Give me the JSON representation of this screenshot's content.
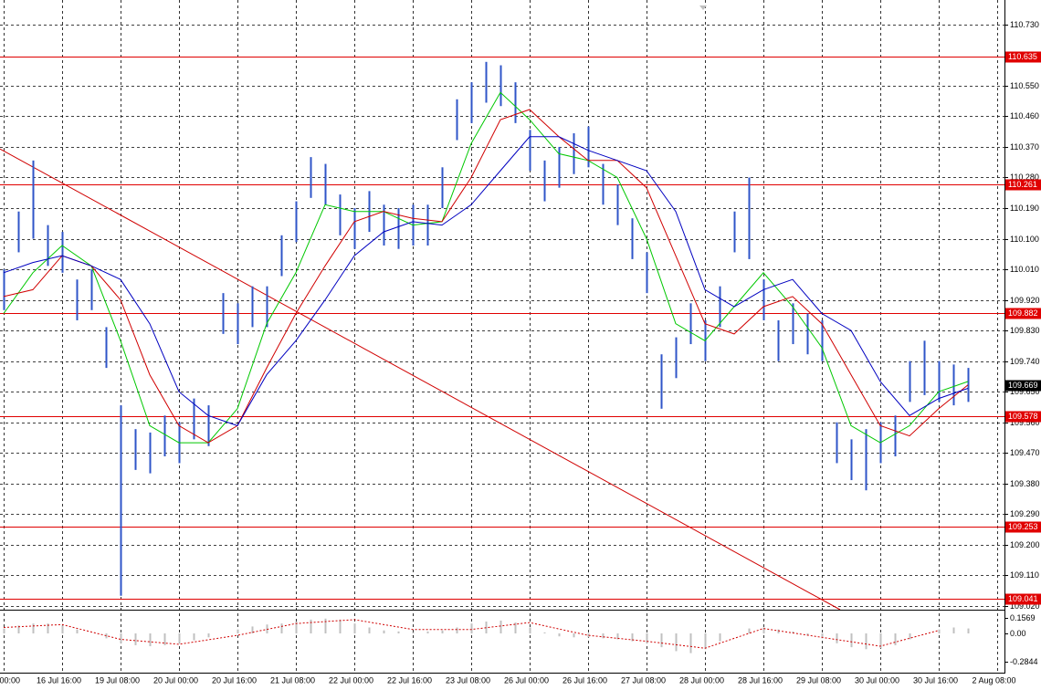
{
  "chart_data": {
    "type": "bars",
    "high": [
      110.01,
      110.18,
      110.33,
      110.14,
      110.12,
      109.98,
      110.01,
      109.84,
      109.61,
      109.54,
      109.53,
      109.58,
      109.56,
      109.63,
      109.61,
      109.94,
      109.91,
      109.96,
      109.96,
      110.11,
      110.21,
      110.34,
      110.32,
      110.23,
      110.19,
      110.24,
      110.2,
      110.19,
      110.2,
      110.2,
      110.31,
      110.51,
      110.56,
      110.62,
      110.61,
      110.56,
      110.42,
      110.33,
      110.37,
      110.41,
      110.43,
      110.32,
      110.26,
      110.16,
      110.06,
      109.76,
      109.81,
      109.91,
      109.86,
      109.96,
      110.18,
      110.28,
      109.98,
      109.86,
      109.91,
      109.88,
      109.86,
      109.56,
      109.51,
      109.54,
      109.56,
      109.58,
      109.74,
      109.8,
      109.74,
      109.73,
      109.72
    ],
    "low": [
      109.89,
      110.06,
      110.1,
      110.02,
      110.0,
      109.86,
      109.89,
      109.72,
      109.05,
      109.42,
      109.41,
      109.46,
      109.44,
      109.51,
      109.49,
      109.82,
      109.79,
      109.84,
      109.84,
      109.99,
      110.09,
      110.22,
      110.2,
      110.11,
      110.07,
      110.12,
      110.08,
      110.07,
      110.08,
      110.08,
      110.19,
      110.39,
      110.44,
      110.5,
      110.49,
      110.44,
      110.3,
      110.21,
      110.25,
      110.29,
      110.31,
      110.2,
      110.14,
      110.04,
      109.94,
      109.6,
      109.69,
      109.79,
      109.74,
      109.84,
      110.06,
      110.04,
      109.86,
      109.74,
      109.79,
      109.76,
      109.74,
      109.44,
      109.39,
      109.36,
      109.44,
      109.46,
      109.62,
      109.64,
      109.62,
      109.61,
      109.62
    ],
    "series": [
      {
        "name": "ma-fast",
        "color": "#00c800",
        "values": [
          109.88,
          110.0,
          110.08,
          110.02,
          109.8,
          109.55,
          109.5,
          109.5,
          109.6,
          109.85,
          110.0,
          110.2,
          110.18,
          110.18,
          110.14,
          110.15,
          110.38,
          110.53,
          110.45,
          110.35,
          110.33,
          110.28,
          110.1,
          109.85,
          109.8,
          109.9,
          110.0,
          109.9,
          109.78,
          109.55,
          109.5,
          109.55,
          109.65,
          109.68
        ]
      },
      {
        "name": "ma-mid",
        "color": "#d00000",
        "values": [
          109.93,
          109.95,
          110.05,
          110.02,
          109.92,
          109.7,
          109.55,
          109.5,
          109.55,
          109.72,
          109.88,
          110.02,
          110.15,
          110.18,
          110.16,
          110.15,
          110.28,
          110.45,
          110.48,
          110.4,
          110.33,
          110.33,
          110.25,
          110.05,
          109.85,
          109.82,
          109.9,
          109.93,
          109.85,
          109.7,
          109.55,
          109.52,
          109.6,
          109.67
        ]
      },
      {
        "name": "ma-slow",
        "color": "#0000c0",
        "values": [
          110.0,
          110.03,
          110.05,
          110.02,
          109.98,
          109.85,
          109.65,
          109.58,
          109.55,
          109.7,
          109.8,
          109.92,
          110.05,
          110.12,
          110.15,
          110.14,
          110.2,
          110.3,
          110.4,
          110.4,
          110.36,
          110.33,
          110.3,
          110.18,
          109.95,
          109.9,
          109.95,
          109.98,
          109.88,
          109.83,
          109.68,
          109.58,
          109.63,
          109.66
        ]
      }
    ],
    "trendline": {
      "x": [
        0,
        57.25
      ],
      "values": [
        110.364,
        109.009
      ],
      "color": "#d00000"
    },
    "levels": [
      110.635,
      110.261,
      109.882,
      109.578,
      109.253,
      109.041
    ],
    "level_color": "#e00000",
    "current_price": 109.669,
    "ylim": [
      109.009,
      110.802
    ],
    "yticks": [
      {
        "value": 110.73,
        "label": "110.730"
      },
      {
        "value": 110.55,
        "label": "110.550"
      },
      {
        "value": 110.46,
        "label": "110.460"
      },
      {
        "value": 110.37,
        "label": "110.370"
      },
      {
        "value": 110.28,
        "label": "110.280"
      },
      {
        "value": 110.19,
        "label": "110.190"
      },
      {
        "value": 110.1,
        "label": "110.100"
      },
      {
        "value": 110.01,
        "label": "110.010"
      },
      {
        "value": 109.92,
        "label": "109.920"
      },
      {
        "value": 109.83,
        "label": "109.830"
      },
      {
        "value": 109.74,
        "label": "109.740"
      },
      {
        "value": 109.65,
        "label": "109.650"
      },
      {
        "value": 109.56,
        "label": "109.560"
      },
      {
        "value": 109.47,
        "label": "109.470"
      },
      {
        "value": 109.38,
        "label": "109.380"
      },
      {
        "value": 109.29,
        "label": "109.290"
      },
      {
        "value": 109.2,
        "label": "109.200"
      },
      {
        "value": 109.11,
        "label": "109.110"
      },
      {
        "value": 109.02,
        "label": "109.020"
      }
    ],
    "xticks": [
      "00:00",
      "16 Jul 16:00",
      "19 Jul 08:00",
      "20 Jul 00:00",
      "20 Jul 16:00",
      "21 Jul 08:00",
      "22 Jul 00:00",
      "22 Jul 16:00",
      "23 Jul 08:00",
      "26 Jul 00:00",
      "26 Jul 16:00",
      "27 Jul 08:00",
      "28 Jul 00:00",
      "28 Jul 16:00",
      "29 Jul 08:00",
      "30 Jul 00:00",
      "30 Jul 16:00",
      "2 Aug 08:00"
    ],
    "grid": true,
    "oscillator": {
      "values": [
        0.05,
        0.08,
        0.1,
        0.1,
        0.08,
        0.04,
        0.0,
        -0.05,
        -0.1,
        -0.12,
        -0.13,
        -0.12,
        -0.1,
        -0.07,
        -0.04,
        0.0,
        0.04,
        0.07,
        0.09,
        0.1,
        0.12,
        0.14,
        0.15,
        0.14,
        0.1,
        0.06,
        0.03,
        0.02,
        0.01,
        0.02,
        0.03,
        0.06,
        0.1,
        0.12,
        0.13,
        0.11,
        0.06,
        0.01,
        -0.03,
        -0.04,
        -0.04,
        -0.05,
        -0.06,
        -0.08,
        -0.1,
        -0.14,
        -0.18,
        -0.2,
        -0.16,
        -0.08,
        0.0,
        0.05,
        0.06,
        0.04,
        0.02,
        -0.02,
        -0.05,
        -0.1,
        -0.14,
        -0.16,
        -0.15,
        -0.12,
        -0.06,
        0.0,
        0.04,
        0.06,
        0.05
      ],
      "signal": [
        0.06,
        0.09,
        -0.06,
        -0.11,
        -0.02,
        0.1,
        0.14,
        0.04,
        0.04,
        0.11,
        -0.02,
        -0.08,
        -0.15,
        0.05,
        -0.04,
        -0.13,
        0.03
      ],
      "color": "#c0c0c0",
      "signal_color": "#d00000",
      "ylim": [
        -0.389,
        0.222
      ],
      "yticks": [
        0.1569,
        {
          "value": 0,
          "label": "0.00"
        },
        -0.2844
      ]
    }
  }
}
